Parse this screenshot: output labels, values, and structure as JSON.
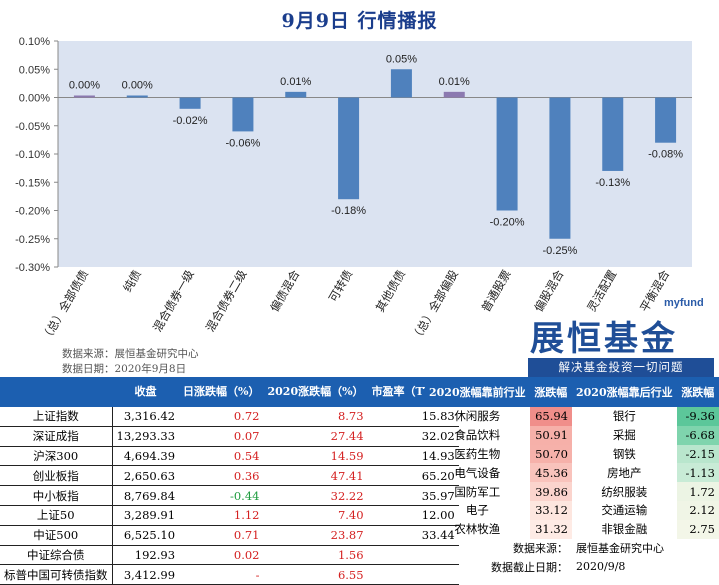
{
  "title": "9月9日  行情播报",
  "chart_data": {
    "type": "bar",
    "categories": [
      "（总）全部债债",
      "纯债",
      "混合债券一级",
      "混合债券二级",
      "偏债混合",
      "可转债",
      "其他债债",
      "（总）全部偏股",
      "普通股票",
      "偏股混合",
      "灵活配置",
      "平衡混合"
    ],
    "values": [
      0.0,
      0.0,
      -0.02,
      -0.06,
      0.01,
      -0.18,
      0.05,
      0.01,
      -0.2,
      -0.25,
      -0.13,
      -0.08
    ],
    "value_labels": [
      "0.00%",
      "0.00%",
      "-0.02%",
      "-0.06%",
      "0.01%",
      "-0.18%",
      "0.05%",
      "0.01%",
      "-0.20%",
      "-0.25%",
      "-0.13%",
      "-0.08%"
    ],
    "bar_colors": [
      "#8b79b0",
      "#4f81bd",
      "#4f81bd",
      "#4f81bd",
      "#4f81bd",
      "#4f81bd",
      "#4f81bd",
      "#8b79b0",
      "#4f81bd",
      "#4f81bd",
      "#4f81bd",
      "#4f81bd"
    ],
    "ylim": [
      -0.3,
      0.1
    ],
    "ytick_labels": [
      "0.10%",
      "0.05%",
      "0.00%",
      "-0.05%",
      "-0.10%",
      "-0.15%",
      "-0.20%",
      "-0.25%",
      "-0.30%"
    ],
    "plot_background": "#dbe3f1",
    "grid": false,
    "legend": "none"
  },
  "source": {
    "line1": "数据来源：展恒基金研究中心",
    "line2": "数据日期：2020年9月8日"
  },
  "logo": {
    "brand": "myfund",
    "name": "展恒基金",
    "slogan": "解决基金投资一切问题"
  },
  "index_table": {
    "headers": [
      "",
      "收盘",
      "日涨跌幅（%）",
      "2020涨跌幅（%）",
      "市盈率（TTM）"
    ],
    "rows": [
      {
        "name": "上证指数",
        "close": "3,316.42",
        "day": "0.72",
        "ytd": "8.73",
        "pe": "15.83",
        "day_color": "red",
        "ytd_color": "red"
      },
      {
        "name": "深证成指",
        "close": "13,293.33",
        "day": "0.07",
        "ytd": "27.44",
        "pe": "32.02",
        "day_color": "red",
        "ytd_color": "red"
      },
      {
        "name": "沪深300",
        "close": "4,694.39",
        "day": "0.54",
        "ytd": "14.59",
        "pe": "14.93",
        "day_color": "red",
        "ytd_color": "red"
      },
      {
        "name": "创业板指",
        "close": "2,650.63",
        "day": "0.36",
        "ytd": "47.41",
        "pe": "65.20",
        "day_color": "red",
        "ytd_color": "red"
      },
      {
        "name": "中小板指",
        "close": "8,769.84",
        "day": "-0.44",
        "ytd": "32.22",
        "pe": "35.97",
        "day_color": "green",
        "ytd_color": "red"
      },
      {
        "name": "上证50",
        "close": "3,289.91",
        "day": "1.12",
        "ytd": "7.40",
        "pe": "12.00",
        "day_color": "red",
        "ytd_color": "red"
      },
      {
        "name": "中证500",
        "close": "6,525.10",
        "day": "0.71",
        "ytd": "23.87",
        "pe": "33.44",
        "day_color": "red",
        "ytd_color": "red"
      },
      {
        "name": "中证综合债",
        "close": "192.93",
        "day": "0.02",
        "ytd": "1.56",
        "pe": "",
        "day_color": "red",
        "ytd_color": "red"
      },
      {
        "name": "标普中国可转债指数",
        "close": "3,412.99",
        "day": "-",
        "ytd": "6.55",
        "pe": "",
        "day_color": "red",
        "ytd_color": "red"
      }
    ]
  },
  "industry_table": {
    "headers": [
      "2020涨幅靠前行业",
      "涨跌幅",
      "2020涨幅靠后行业",
      "涨跌幅"
    ],
    "rows": [
      {
        "top": "休闲服务",
        "top_val": "65.94",
        "bottom": "银行",
        "bottom_val": "-9.36",
        "top_color": "#f08e8a",
        "bottom_color": "#5cc79a"
      },
      {
        "top": "食品饮料",
        "top_val": "50.91",
        "bottom": "采掘",
        "bottom_val": "-6.68",
        "top_color": "#f6b0a9",
        "bottom_color": "#7fd4ad"
      },
      {
        "top": "医药生物",
        "top_val": "50.70",
        "bottom": "钢铁",
        "bottom_val": "-2.15",
        "top_color": "#f6b1aa",
        "bottom_color": "#b9e6cd"
      },
      {
        "top": "电气设备",
        "top_val": "45.36",
        "bottom": "房地产",
        "bottom_val": "-1.13",
        "top_color": "#f9c3bc",
        "bottom_color": "#c8ebd6"
      },
      {
        "top": "国防军工",
        "top_val": "39.86",
        "bottom": "纺织服装",
        "bottom_val": "1.72",
        "top_color": "#fbd4cd",
        "bottom_color": "#ecf4e4"
      },
      {
        "top": "电子",
        "top_val": "33.12",
        "bottom": "交通运输",
        "bottom_val": "2.12",
        "top_color": "#fde6df",
        "bottom_color": "#f0f5e6"
      },
      {
        "top": "农林牧渔",
        "top_val": "31.32",
        "bottom": "非银金融",
        "bottom_val": "2.75",
        "top_color": "#feebe5",
        "bottom_color": "#f3f6e8"
      }
    ],
    "footer": [
      {
        "label": "数据来源：",
        "value": "展恒基金研究中心"
      },
      {
        "label": "数据截止日期：",
        "value": "2020/9/8"
      }
    ]
  }
}
